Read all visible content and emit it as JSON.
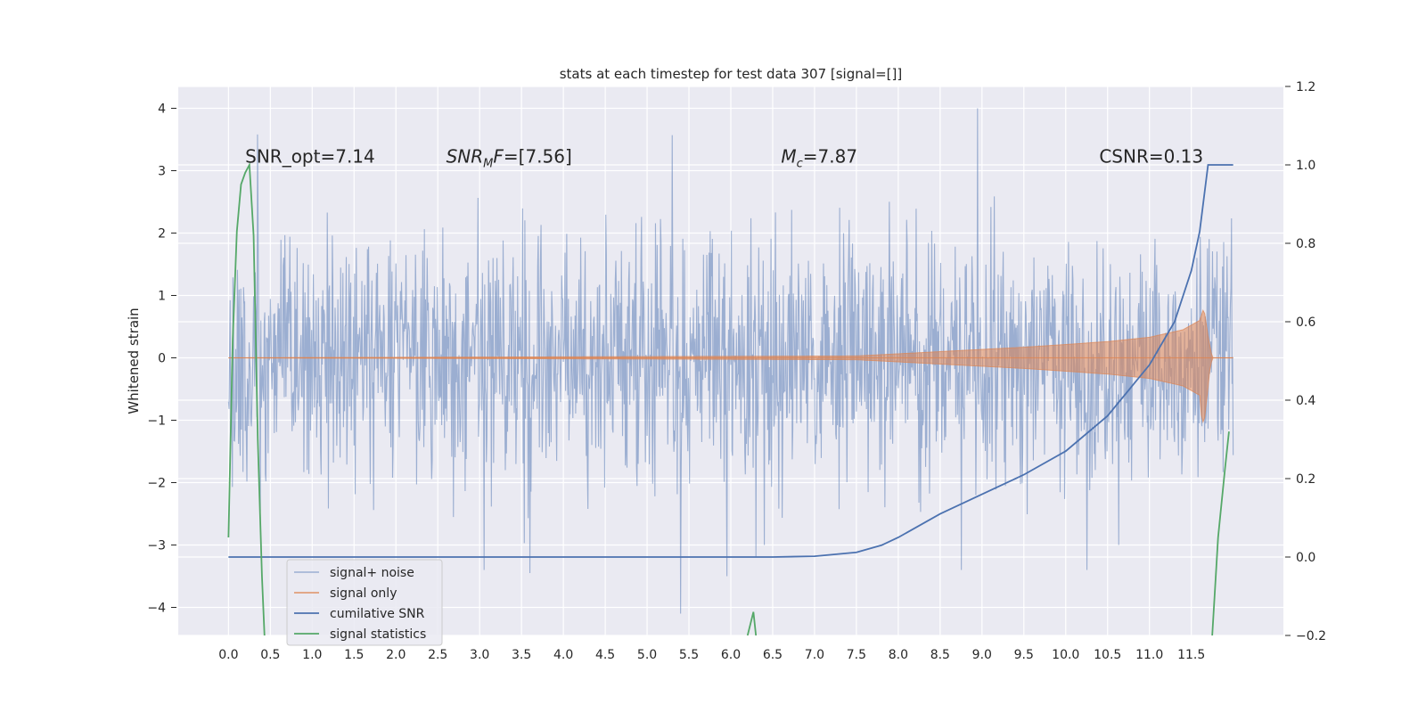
{
  "chart_data": {
    "type": "line",
    "title": "stats at each timestep for test data 307 [signal=[]]",
    "ylabel": "Whitened strain",
    "y2label": "",
    "xlabel": "",
    "xlim": [
      -0.6,
      12.6
    ],
    "ylim": [
      -4.45,
      4.35
    ],
    "y2lim": [
      -0.2,
      1.2
    ],
    "x_ticks": [
      "0.0",
      "0.5",
      "1.0",
      "1.5",
      "2.0",
      "2.5",
      "3.0",
      "3.5",
      "4.0",
      "4.5",
      "5.0",
      "5.5",
      "6.0",
      "6.5",
      "7.0",
      "7.5",
      "8.0",
      "8.5",
      "9.0",
      "9.5",
      "10.0",
      "10.5",
      "11.0",
      "11.5"
    ],
    "y_ticks": [
      -4,
      -3,
      -2,
      -1,
      0,
      1,
      2,
      3,
      4
    ],
    "y2_ticks": [
      "-0.2",
      "0.0",
      "0.2",
      "0.4",
      "0.6",
      "0.8",
      "1.0",
      "1.2"
    ],
    "grid": true,
    "legend_position": "lower-left",
    "annotations": [
      {
        "text": "SNR_opt=7.14",
        "x": 0.2,
        "y": 3.2
      },
      {
        "text": "SNR",
        "sub": "M",
        "rest": "F=[7.56]",
        "x": 2.6,
        "y": 3.2
      },
      {
        "text": "M",
        "sub": "c",
        "rest": "=7.87",
        "x": 6.6,
        "y": 3.2
      },
      {
        "text": "CSNR=0.13",
        "x": 10.4,
        "y": 3.2
      }
    ],
    "series": [
      {
        "name": "signal+ noise",
        "color": "#4c72b0",
        "axis": "left",
        "x_range": [
          0.0,
          12.0
        ],
        "noise_sigma": 1.0,
        "peaks": [
          {
            "x": 0.35,
            "y": 3.58
          },
          {
            "x": 5.3,
            "y": 3.57
          },
          {
            "x": 8.95,
            "y": 4.0
          },
          {
            "x": 5.4,
            "y": -4.1
          },
          {
            "x": 6.3,
            "y": -3.2
          },
          {
            "x": 3.05,
            "y": -3.4
          },
          {
            "x": 3.6,
            "y": -3.45
          },
          {
            "x": 5.95,
            "y": -3.5
          },
          {
            "x": 8.75,
            "y": -3.4
          },
          {
            "x": 10.25,
            "y": -3.4
          }
        ]
      },
      {
        "name": "signal only",
        "color": "#dd8452",
        "axis": "left",
        "x": [
          0.0,
          7.5,
          8.5,
          9.5,
          10.5,
          11.0,
          11.4,
          11.6,
          11.65,
          11.7,
          11.75,
          12.0
        ],
        "envelope": [
          0.0,
          0.03,
          0.1,
          0.17,
          0.26,
          0.33,
          0.45,
          0.6,
          0.8,
          0.35,
          0.0,
          0.0
        ]
      },
      {
        "name": "cumilative SNR",
        "color": "#4c72b0",
        "axis": "right",
        "x": [
          0.0,
          6.5,
          7.0,
          7.5,
          7.8,
          8.0,
          8.5,
          9.0,
          9.5,
          10.0,
          10.5,
          11.0,
          11.3,
          11.5,
          11.6,
          11.7,
          12.0
        ],
        "y": [
          0.0,
          0.0,
          0.002,
          0.012,
          0.03,
          0.05,
          0.11,
          0.16,
          0.21,
          0.27,
          0.36,
          0.49,
          0.6,
          0.73,
          0.83,
          1.0,
          1.0
        ]
      },
      {
        "name": "signal statistics",
        "color": "#55a868",
        "axis": "right",
        "x": [
          0.0,
          0.05,
          0.1,
          0.15,
          0.2,
          0.25,
          0.3,
          0.35,
          0.4,
          0.43,
          6.2,
          6.27,
          6.3,
          11.75,
          11.82,
          11.9,
          11.95
        ],
        "y": [
          0.05,
          0.55,
          0.83,
          0.95,
          0.98,
          1.0,
          0.82,
          0.3,
          -0.05,
          -0.2,
          -0.2,
          -0.14,
          -0.2,
          -0.2,
          0.05,
          0.22,
          0.32
        ]
      }
    ]
  }
}
